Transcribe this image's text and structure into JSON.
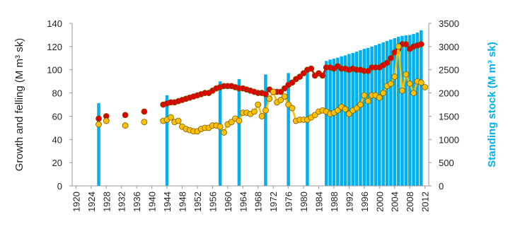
{
  "chart_data": {
    "type": "bar-line",
    "y_label": "Growth and felling (M m³ sk)",
    "y2_label": "Standing stock (M m³ sk)",
    "x": [
      1926,
      1927,
      1928,
      1929,
      1930,
      1931,
      1932,
      1933,
      1934,
      1935,
      1936,
      1937,
      1938,
      1939,
      1940,
      1941,
      1942,
      1943,
      1944,
      1945,
      1946,
      1947,
      1948,
      1949,
      1950,
      1951,
      1952,
      1953,
      1954,
      1955,
      1956,
      1957,
      1958,
      1959,
      1960,
      1961,
      1962,
      1963,
      1964,
      1965,
      1966,
      1967,
      1968,
      1969,
      1970,
      1971,
      1972,
      1973,
      1974,
      1975,
      1976,
      1977,
      1978,
      1979,
      1980,
      1981,
      1982,
      1983,
      1984,
      1985,
      1986,
      1987,
      1988,
      1989,
      1990,
      1991,
      1992,
      1993,
      1994,
      1995,
      1996,
      1997,
      1998,
      1999,
      2000,
      2001,
      2002,
      2003,
      2004,
      2005,
      2006,
      2007,
      2008,
      2009,
      2010,
      2011,
      2012
    ],
    "series": [
      {
        "type": "bar",
        "axis": "y2",
        "color": "#00b0f0",
        "values": [
          1780,
          null,
          null,
          null,
          null,
          null,
          null,
          null,
          null,
          null,
          null,
          null,
          null,
          null,
          null,
          null,
          null,
          null,
          1950,
          null,
          null,
          null,
          null,
          null,
          null,
          null,
          null,
          null,
          null,
          null,
          null,
          null,
          2250,
          null,
          null,
          null,
          null,
          2300,
          null,
          null,
          null,
          null,
          null,
          null,
          2400,
          null,
          null,
          null,
          null,
          null,
          2430,
          null,
          null,
          null,
          null,
          2540,
          null,
          null,
          null,
          null,
          2690,
          2720,
          2740,
          2760,
          2790,
          2810,
          2840,
          2860,
          2890,
          2920,
          2950,
          2970,
          3000,
          3030,
          3060,
          3090,
          3120,
          3150,
          3180,
          3210,
          3230,
          3240,
          3250,
          3270,
          3300,
          3350,
          null
        ]
      },
      {
        "type": "line",
        "color": "#e00000",
        "values": [
          58,
          null,
          60,
          null,
          null,
          null,
          null,
          61,
          null,
          null,
          null,
          null,
          64,
          null,
          null,
          null,
          null,
          70,
          71,
          72,
          72,
          73,
          74,
          75,
          76,
          77,
          78,
          79,
          80,
          80,
          82,
          84,
          85,
          86,
          86,
          86,
          85,
          84,
          84,
          83,
          82,
          81,
          80,
          80,
          79,
          83,
          81,
          81,
          81,
          84,
          87,
          89,
          92,
          94,
          97,
          100,
          101,
          95,
          97,
          95,
          102,
          102,
          101,
          103,
          101,
          101,
          100,
          101,
          100,
          100,
          99,
          99,
          102,
          102,
          102,
          104,
          106,
          110,
          115,
          118,
          122,
          122,
          118,
          120,
          121,
          122,
          null
        ]
      },
      {
        "type": "line",
        "color": "#ffc000",
        "values": [
          53,
          null,
          56,
          null,
          null,
          null,
          null,
          52,
          null,
          null,
          null,
          null,
          55,
          null,
          null,
          null,
          null,
          56,
          57,
          59,
          55,
          56,
          51,
          49,
          48,
          47,
          47,
          49,
          50,
          50,
          52,
          52,
          51,
          46,
          53,
          55,
          58,
          56,
          63,
          63,
          62,
          64,
          70,
          60,
          65,
          75,
          81,
          72,
          74,
          77,
          70,
          67,
          56,
          57,
          57,
          57,
          59,
          61,
          64,
          65,
          64,
          62,
          63,
          65,
          68,
          66,
          62,
          65,
          67,
          70,
          78,
          73,
          78,
          78,
          76,
          80,
          86,
          88,
          94,
          120,
          82,
          96,
          88,
          80,
          90,
          89,
          85
        ]
      }
    ],
    "xlim": [
      1919,
      2013
    ],
    "xticks": [
      1920,
      1924,
      1928,
      1932,
      1936,
      1940,
      1944,
      1948,
      1952,
      1956,
      1960,
      1964,
      1968,
      1972,
      1976,
      1980,
      1984,
      1988,
      1992,
      1996,
      2000,
      2004,
      2008,
      2012
    ],
    "ylim": [
      0,
      140
    ],
    "yticks": [
      0,
      20,
      40,
      60,
      80,
      100,
      120,
      140
    ],
    "y2lim": [
      0,
      3500
    ],
    "y2ticks": [
      0,
      500,
      1000,
      1500,
      2000,
      2500,
      3000,
      3500
    ]
  }
}
